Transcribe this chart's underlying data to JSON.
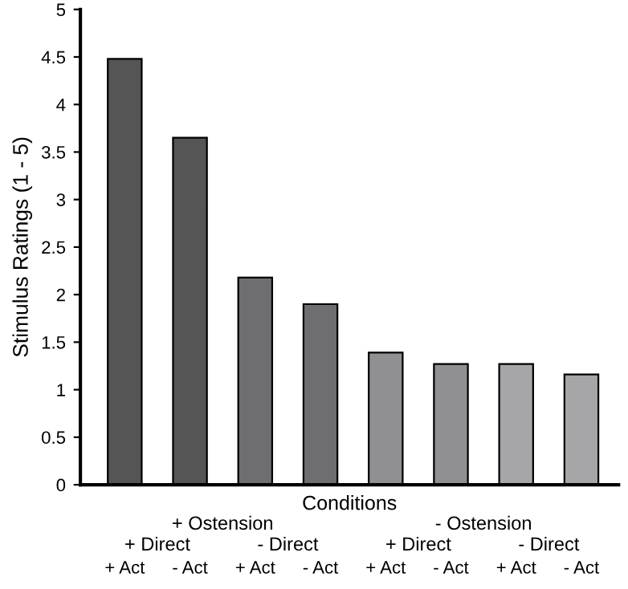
{
  "chart_data": {
    "type": "bar",
    "xlabel": "Conditions",
    "ylabel": "Stimulus Ratings (1 - 5)",
    "categories": [
      "+ Act",
      "- Act",
      "+ Act",
      "- Act",
      "+ Act",
      "- Act",
      "+ Act",
      "- Act"
    ],
    "values": [
      4.48,
      3.65,
      2.18,
      1.9,
      1.39,
      1.27,
      1.27,
      1.16
    ],
    "colors": [
      "#555555",
      "#555555",
      "#6e6e70",
      "#6e6e70",
      "#909092",
      "#909092",
      "#a6a6a8",
      "#a6a6a8"
    ],
    "ylim": [
      0,
      5
    ],
    "yticks": [
      0,
      0.5,
      1,
      1.5,
      2,
      2.5,
      3,
      3.5,
      4,
      4.5,
      5
    ],
    "annotations": [
      "+ Ostension",
      "- Ostension",
      "+ Direct",
      "- Direct",
      "+ Direct",
      "- Direct"
    ],
    "grid": false
  }
}
